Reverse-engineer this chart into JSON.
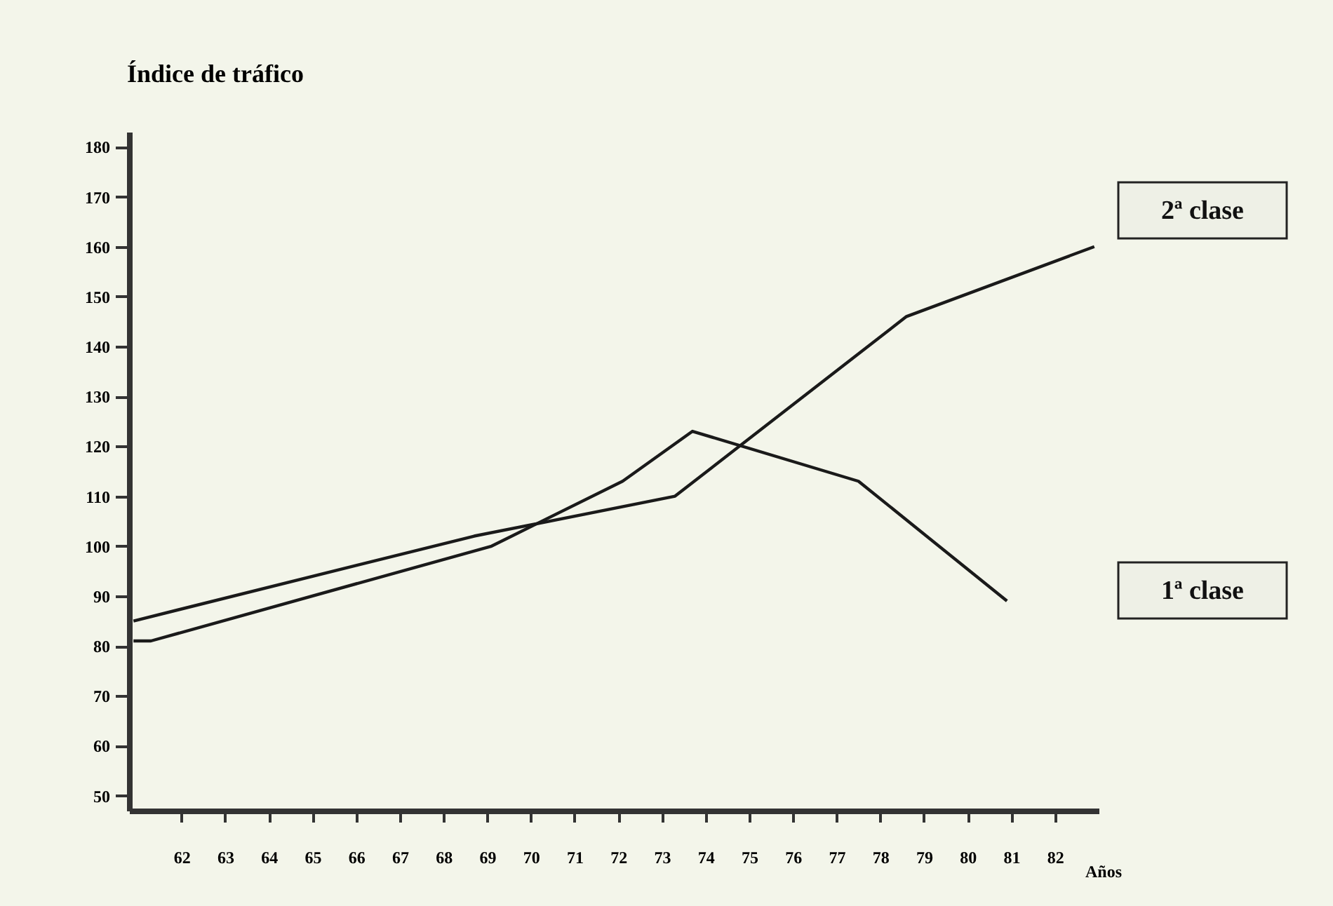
{
  "chart_data": {
    "type": "line",
    "ylabel": "Índice de tráfico",
    "xlabel": "Años",
    "xlim": [
      60.8,
      83
    ],
    "xticks": [
      62,
      63,
      64,
      65,
      66,
      67,
      68,
      69,
      70,
      71,
      72,
      73,
      74,
      75,
      76,
      77,
      78,
      79,
      80,
      81,
      82
    ],
    "ylim": [
      47,
      183
    ],
    "yticks": [
      50,
      60,
      70,
      80,
      90,
      100,
      110,
      120,
      130,
      140,
      150,
      160,
      170,
      180
    ],
    "grid": false,
    "legend": false,
    "marker": "none",
    "line_style": "solid",
    "series": [
      {
        "name": "2ª clase",
        "color": "#1a1a1a",
        "x": [
          60.9,
          68.7,
          73.3,
          78.6,
          82.9
        ],
        "values": [
          85,
          102,
          110,
          146,
          160
        ]
      },
      {
        "name": "1ª clase",
        "color": "#1a1a1a",
        "x": [
          60.9,
          61.3,
          69.1,
          72.1,
          73.7,
          77.5,
          80.9
        ],
        "values": [
          81,
          81,
          100,
          113,
          123,
          113,
          89
        ]
      }
    ]
  }
}
